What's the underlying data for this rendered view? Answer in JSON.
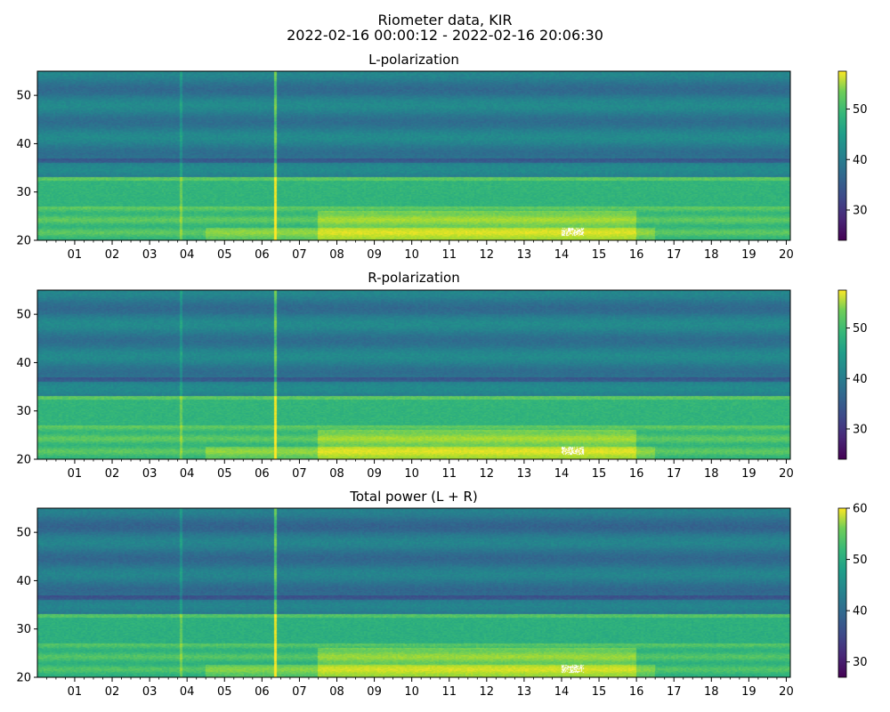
{
  "figure": {
    "title_line1": "Riometer data, KIR",
    "title_line2": "2022-02-16 00:00:12 - 2022-02-16 20:06:30"
  },
  "chart_data": [
    {
      "type": "heatmap",
      "title": "L-polarization",
      "xlabel": "",
      "ylabel": "",
      "x_tick_labels": [
        "01",
        "02",
        "03",
        "04",
        "05",
        "06",
        "07",
        "08",
        "09",
        "10",
        "11",
        "12",
        "13",
        "14",
        "15",
        "16",
        "17",
        "18",
        "19",
        "20"
      ],
      "xlim_hours": [
        0.0033,
        20.108
      ],
      "ylim": [
        20,
        55
      ],
      "y_ticks": [
        20,
        30,
        40,
        50
      ],
      "colorbar": {
        "min": 24,
        "max": 57.5,
        "ticks": [
          30,
          40,
          50
        ],
        "colormap": "viridis"
      },
      "features": {
        "spikes_at_hour": [
          3.85,
          6.35
        ],
        "saturated_band_hours": [
          14.0,
          14.6
        ],
        "saturated_band_y": [
          21,
          22.5
        ]
      },
      "grid": false
    },
    {
      "type": "heatmap",
      "title": "R-polarization",
      "xlabel": "",
      "ylabel": "",
      "x_tick_labels": [
        "01",
        "02",
        "03",
        "04",
        "05",
        "06",
        "07",
        "08",
        "09",
        "10",
        "11",
        "12",
        "13",
        "14",
        "15",
        "16",
        "17",
        "18",
        "19",
        "20"
      ],
      "xlim_hours": [
        0.0033,
        20.108
      ],
      "ylim": [
        20,
        55
      ],
      "y_ticks": [
        20,
        30,
        40,
        50
      ],
      "colorbar": {
        "min": 24,
        "max": 57.5,
        "ticks": [
          30,
          40,
          50
        ],
        "colormap": "viridis"
      },
      "features": {
        "spikes_at_hour": [
          3.85,
          6.35
        ],
        "saturated_band_hours": [
          14.0,
          14.6
        ],
        "saturated_band_y": [
          21,
          22.5
        ]
      },
      "grid": false
    },
    {
      "type": "heatmap",
      "title": "Total power (L + R)",
      "xlabel": "",
      "ylabel": "",
      "x_tick_labels": [
        "01",
        "02",
        "03",
        "04",
        "05",
        "06",
        "07",
        "08",
        "09",
        "10",
        "11",
        "12",
        "13",
        "14",
        "15",
        "16",
        "17",
        "18",
        "19",
        "20"
      ],
      "xlim_hours": [
        0.0033,
        20.108
      ],
      "ylim": [
        20,
        55
      ],
      "y_ticks": [
        20,
        30,
        40,
        50
      ],
      "colorbar": {
        "min": 27,
        "max": 60,
        "ticks": [
          30,
          40,
          50,
          60
        ],
        "colormap": "viridis"
      },
      "features": {
        "spikes_at_hour": [
          3.85,
          6.35
        ],
        "saturated_band_hours": [
          14.0,
          14.6
        ],
        "saturated_band_y": [
          21,
          22.5
        ]
      },
      "grid": false
    }
  ]
}
